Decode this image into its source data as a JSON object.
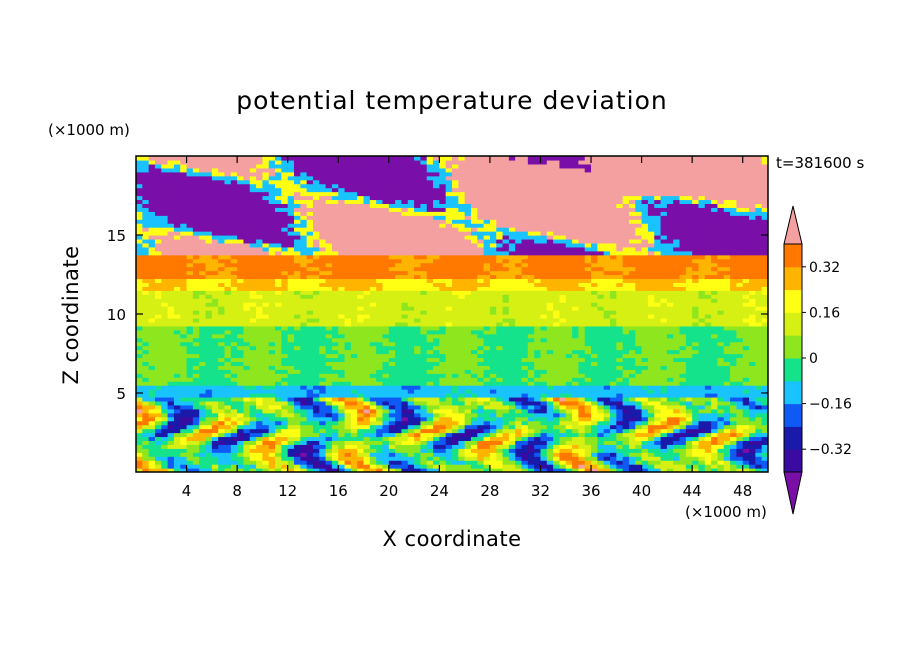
{
  "chart_data": {
    "type": "heatmap",
    "title": "potential temperature deviation",
    "xlabel": "X coordinate",
    "ylabel": "Z coordinate",
    "x_unit": "(×1000 m)",
    "y_unit": "(×1000 m)",
    "time_label": "t=381600 s",
    "xlim": [
      0,
      50
    ],
    "ylim": [
      0,
      20
    ],
    "x_ticks": [
      4,
      8,
      12,
      16,
      20,
      24,
      28,
      32,
      36,
      40,
      44,
      48
    ],
    "y_ticks": [
      5,
      10,
      15
    ],
    "colorbar": {
      "levels": [
        -0.4,
        -0.32,
        -0.24,
        -0.16,
        -0.08,
        0,
        0.08,
        0.16,
        0.24,
        0.32,
        0.4
      ],
      "tick_labels": [
        "0.32",
        "0.16",
        "0",
        "−0.16",
        "−0.32"
      ],
      "tick_values": [
        0.32,
        0.16,
        0,
        -0.16,
        -0.32
      ],
      "colors": [
        "#7a0fa8",
        "#3a0ba0",
        "#1a1aaa",
        "#0f5af5",
        "#19c3ff",
        "#14e38c",
        "#8ee61e",
        "#d7f014",
        "#ffff14",
        "#ffb400",
        "#ff7800",
        "#ff3214",
        "#f5a0a0"
      ],
      "extend": "both"
    },
    "bands": [
      {
        "zmin": 0.0,
        "zmax": 4.8,
        "pattern": "convective",
        "value": -0.16
      },
      {
        "zmin": 4.8,
        "zmax": 5.6,
        "pattern": "band",
        "value": -0.12
      },
      {
        "zmin": 5.6,
        "zmax": 9.2,
        "pattern": "band",
        "value": 0.0
      },
      {
        "zmin": 9.2,
        "zmax": 11.5,
        "pattern": "band",
        "value": 0.12
      },
      {
        "zmin": 11.5,
        "zmax": 12.3,
        "pattern": "band",
        "value": 0.24
      },
      {
        "zmin": 12.3,
        "zmax": 13.8,
        "pattern": "band",
        "value": 0.34
      },
      {
        "zmin": 13.8,
        "zmax": 20.0,
        "pattern": "mixed",
        "value": 0.45
      }
    ]
  }
}
